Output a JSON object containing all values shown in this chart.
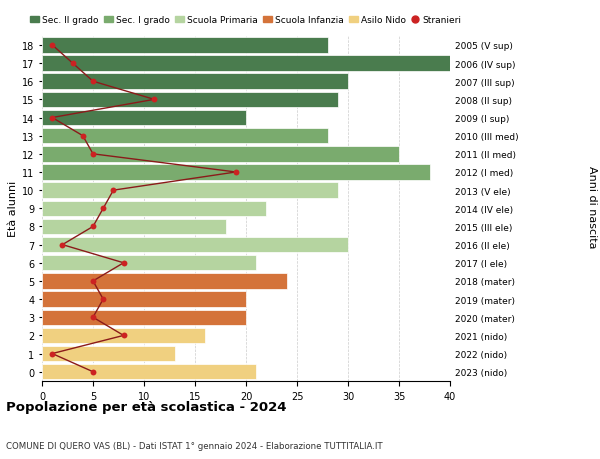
{
  "ages": [
    18,
    17,
    16,
    15,
    14,
    13,
    12,
    11,
    10,
    9,
    8,
    7,
    6,
    5,
    4,
    3,
    2,
    1,
    0
  ],
  "right_labels": [
    "2005 (V sup)",
    "2006 (IV sup)",
    "2007 (III sup)",
    "2008 (II sup)",
    "2009 (I sup)",
    "2010 (III med)",
    "2011 (II med)",
    "2012 (I med)",
    "2013 (V ele)",
    "2014 (IV ele)",
    "2015 (III ele)",
    "2016 (II ele)",
    "2017 (I ele)",
    "2018 (mater)",
    "2019 (mater)",
    "2020 (mater)",
    "2021 (nido)",
    "2022 (nido)",
    "2023 (nido)"
  ],
  "bar_values": [
    28,
    40,
    30,
    29,
    20,
    28,
    35,
    38,
    29,
    22,
    18,
    30,
    21,
    24,
    20,
    20,
    16,
    13,
    21
  ],
  "bar_colors": [
    "#4a7c4e",
    "#4a7c4e",
    "#4a7c4e",
    "#4a7c4e",
    "#4a7c4e",
    "#7aab6e",
    "#7aab6e",
    "#7aab6e",
    "#b5d4a0",
    "#b5d4a0",
    "#b5d4a0",
    "#b5d4a0",
    "#b5d4a0",
    "#d4733a",
    "#d4733a",
    "#d4733a",
    "#f0d080",
    "#f0d080",
    "#f0d080"
  ],
  "stranieri_values": [
    1,
    3,
    5,
    11,
    1,
    4,
    5,
    19,
    7,
    6,
    5,
    2,
    8,
    5,
    6,
    5,
    8,
    1,
    5
  ],
  "legend_labels": [
    "Sec. II grado",
    "Sec. I grado",
    "Scuola Primaria",
    "Scuola Infanzia",
    "Asilo Nido",
    "Stranieri"
  ],
  "legend_colors": [
    "#4a7c4e",
    "#7aab6e",
    "#b5d4a0",
    "#d4733a",
    "#f0d080",
    "#cc2222"
  ],
  "title": "Popolazione per età scolastica - 2024",
  "subtitle": "COMUNE DI QUERO VAS (BL) - Dati ISTAT 1° gennaio 2024 - Elaborazione TUTTITALIA.IT",
  "ylabel_left": "Età alunni",
  "ylabel_right": "Anni di nascita",
  "xlim": [
    0,
    40
  ],
  "xticks": [
    0,
    5,
    10,
    15,
    20,
    25,
    30,
    35,
    40
  ],
  "bg_color": "#ffffff",
  "grid_color": "#cccccc"
}
